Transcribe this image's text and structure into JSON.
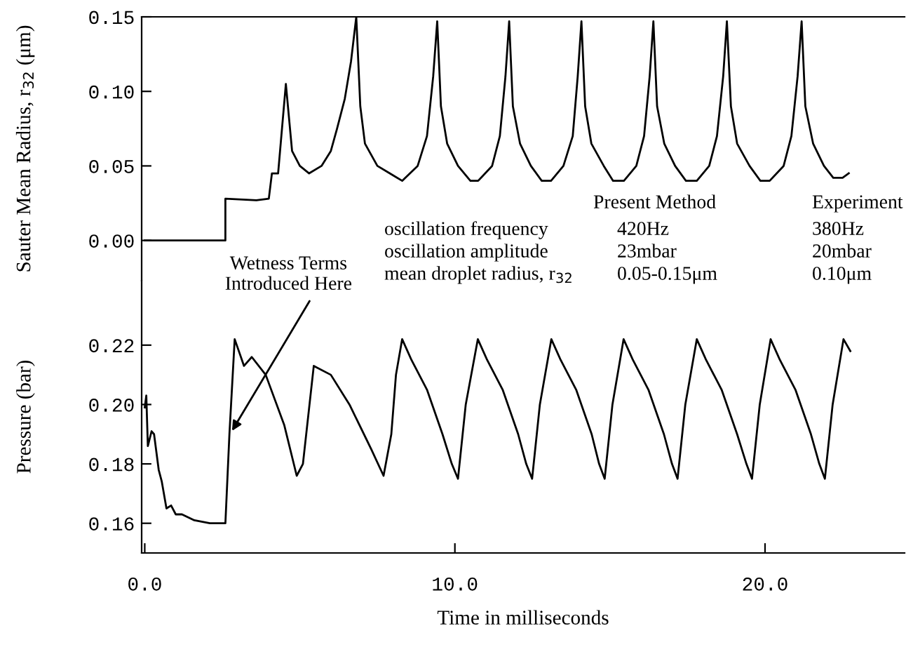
{
  "chart_data": [
    {
      "type": "line",
      "ylabel": "Sauter Mean Radius, r$_{32}$ (μm)",
      "xlim": [
        -0.1,
        24.5
      ],
      "ylim": [
        -0.027,
        0.15
      ],
      "yticks": [
        {
          "value": 0,
          "label": "0.00"
        },
        {
          "value": 0.05,
          "label": "0.05"
        },
        {
          "value": 0.1,
          "label": "0.10"
        },
        {
          "value": 0.15,
          "label": "0.15"
        }
      ],
      "tick_labels": "y",
      "annotations": [
        "Present Method",
        "Experiment",
        "oscillation frequency",
        "420Hz",
        "380Hz",
        "oscillation amplitude",
        "23mbar",
        "20mbar",
        "mean droplet radius, r$_{32}$",
        "0.05-0.15μm",
        "0.10μm"
      ],
      "series": [
        {
          "color": "#000000",
          "x": [
            0,
            2.6,
            2.6,
            3.6,
            4.0,
            4.1,
            4.3,
            4.55,
            4.75,
            5.0,
            5.3,
            5.7,
            6.0,
            6.2,
            6.45,
            6.65,
            6.82,
            6.95,
            7.1,
            7.5,
            7.9,
            8.3,
            8.8,
            9.1,
            9.3,
            9.43,
            9.55,
            9.75,
            10.1,
            10.5,
            10.75,
            11.2,
            11.45,
            11.63,
            11.75,
            11.87,
            12.1,
            12.45,
            12.8,
            13.1,
            13.5,
            13.8,
            13.96,
            14.08,
            14.2,
            14.4,
            14.8,
            15.1,
            15.45,
            15.85,
            16.1,
            16.28,
            16.4,
            16.52,
            16.75,
            17.1,
            17.45,
            17.8,
            18.2,
            18.45,
            18.65,
            18.77,
            18.9,
            19.1,
            19.5,
            19.85,
            20.15,
            20.6,
            20.85,
            21.05,
            21.18,
            21.3,
            21.55,
            21.9,
            22.2,
            22.5,
            22.7
          ],
          "values": [
            0,
            0,
            0.028,
            0.027,
            0.028,
            0.045,
            0.045,
            0.105,
            0.06,
            0.05,
            0.045,
            0.05,
            0.06,
            0.075,
            0.095,
            0.12,
            0.15,
            0.09,
            0.065,
            0.05,
            0.045,
            0.04,
            0.05,
            0.07,
            0.11,
            0.147,
            0.09,
            0.065,
            0.05,
            0.04,
            0.04,
            0.05,
            0.07,
            0.11,
            0.147,
            0.09,
            0.065,
            0.05,
            0.04,
            0.04,
            0.05,
            0.07,
            0.11,
            0.147,
            0.09,
            0.065,
            0.05,
            0.04,
            0.04,
            0.05,
            0.07,
            0.11,
            0.147,
            0.09,
            0.065,
            0.05,
            0.04,
            0.04,
            0.05,
            0.07,
            0.11,
            0.147,
            0.09,
            0.065,
            0.05,
            0.04,
            0.04,
            0.05,
            0.07,
            0.11,
            0.147,
            0.09,
            0.065,
            0.05,
            0.042,
            0.042,
            0.045
          ]
        }
      ]
    },
    {
      "type": "line",
      "xlabel": "Time in milliseconds",
      "ylabel": "Pressure (bar)",
      "xlim": [
        -0.1,
        24.5
      ],
      "ylim": [
        0.15,
        0.2417
      ],
      "xticks": [
        {
          "value": 0,
          "label": "0.0"
        },
        {
          "value": 10,
          "label": "10.0"
        },
        {
          "value": 20,
          "label": "20.0"
        }
      ],
      "yticks": [
        0.16,
        0.18,
        {
          "value": 0.2,
          "label": "0.20"
        },
        0.22
      ],
      "annotations": [
        {
          "text": "Wetness Terms\nIntroduced Here",
          "x": 2.75,
          "y": 0.19
        }
      ],
      "series": [
        {
          "color": "#000000",
          "x": [
            0,
            0.05,
            0.1,
            0.22,
            0.3,
            0.45,
            0.55,
            0.7,
            0.85,
            1.0,
            1.2,
            1.6,
            2.1,
            2.6,
            2.73,
            2.9,
            3.2,
            3.45,
            3.9,
            4.5,
            4.9,
            5.1,
            5.45,
            6.0,
            6.6,
            7.3,
            7.7,
            7.95,
            8.1,
            8.3,
            8.6,
            9.1,
            9.6,
            9.9,
            10.1,
            10.35,
            10.74,
            11.04,
            11.54,
            12.04,
            12.3,
            12.49,
            12.74,
            13.11,
            13.41,
            13.91,
            14.41,
            14.65,
            14.83,
            15.08,
            15.44,
            15.74,
            16.24,
            16.74,
            17.0,
            17.18,
            17.43,
            17.8,
            18.1,
            18.6,
            19.1,
            19.4,
            19.58,
            19.83,
            20.18,
            20.48,
            20.98,
            21.48,
            21.75,
            21.93,
            22.18,
            22.53,
            22.75
          ],
          "values": [
            0.199,
            0.203,
            0.186,
            0.191,
            0.19,
            0.178,
            0.174,
            0.165,
            0.166,
            0.163,
            0.163,
            0.161,
            0.16,
            0.16,
            0.19,
            0.222,
            0.213,
            0.216,
            0.21,
            0.193,
            0.176,
            0.18,
            0.213,
            0.21,
            0.2,
            0.185,
            0.176,
            0.19,
            0.21,
            0.222,
            0.215,
            0.205,
            0.19,
            0.18,
            0.175,
            0.2,
            0.222,
            0.215,
            0.205,
            0.19,
            0.18,
            0.175,
            0.2,
            0.222,
            0.215,
            0.205,
            0.19,
            0.18,
            0.175,
            0.2,
            0.222,
            0.215,
            0.205,
            0.19,
            0.18,
            0.175,
            0.2,
            0.222,
            0.215,
            0.205,
            0.19,
            0.18,
            0.175,
            0.2,
            0.222,
            0.215,
            0.205,
            0.19,
            0.18,
            0.175,
            0.2,
            0.222,
            0.218
          ]
        }
      ]
    }
  ]
}
